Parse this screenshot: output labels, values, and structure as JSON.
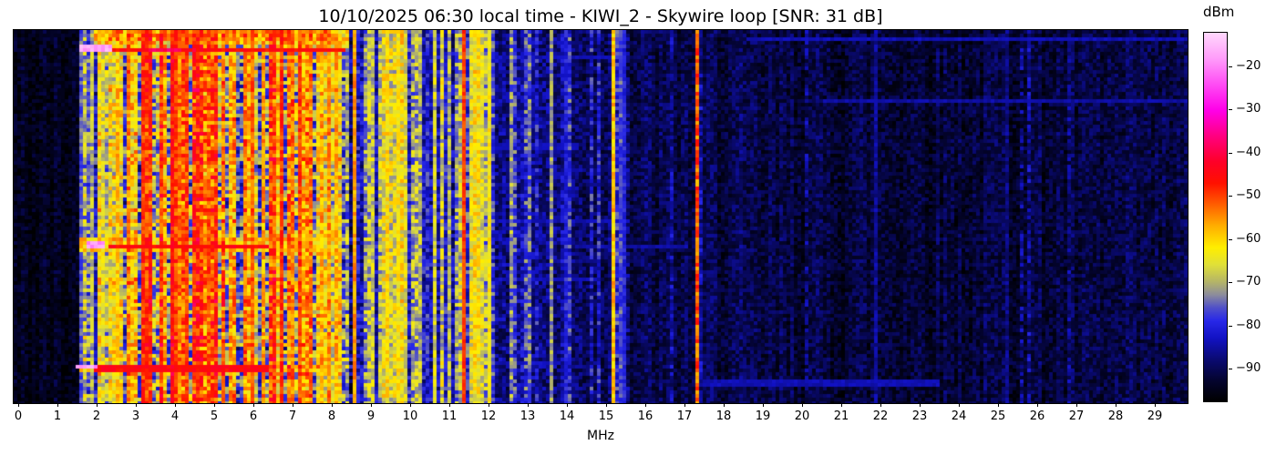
{
  "title": "10/10/2025 06:30 local time - KIWI_2 - Skywire loop [SNR: 31 dB]",
  "x_axis": {
    "label": "MHz",
    "ticks": [
      {
        "v": 0,
        "label": "0"
      },
      {
        "v": 1,
        "label": "1"
      },
      {
        "v": 2,
        "label": "2"
      },
      {
        "v": 3,
        "label": "3"
      },
      {
        "v": 4,
        "label": "4"
      },
      {
        "v": 5,
        "label": "5"
      },
      {
        "v": 6,
        "label": "6"
      },
      {
        "v": 7,
        "label": "7"
      },
      {
        "v": 8,
        "label": "8"
      },
      {
        "v": 9,
        "label": "9"
      },
      {
        "v": 10,
        "label": "10"
      },
      {
        "v": 11,
        "label": "11"
      },
      {
        "v": 12,
        "label": "12"
      },
      {
        "v": 13,
        "label": "13"
      },
      {
        "v": 14,
        "label": "14"
      },
      {
        "v": 15,
        "label": "15"
      },
      {
        "v": 16,
        "label": "16"
      },
      {
        "v": 17,
        "label": "17"
      },
      {
        "v": 18,
        "label": "18"
      },
      {
        "v": 19,
        "label": "19"
      },
      {
        "v": 20,
        "label": "20"
      },
      {
        "v": 21,
        "label": "21"
      },
      {
        "v": 22,
        "label": "22"
      },
      {
        "v": 23,
        "label": "23"
      },
      {
        "v": 24,
        "label": "24"
      },
      {
        "v": 25,
        "label": "25"
      },
      {
        "v": 26,
        "label": "26"
      },
      {
        "v": 27,
        "label": "27"
      },
      {
        "v": 28,
        "label": "28"
      },
      {
        "v": 29,
        "label": "29"
      }
    ]
  },
  "colorbar": {
    "label": "dBm",
    "ticks": [
      {
        "v": -20,
        "label": "−20"
      },
      {
        "v": -30,
        "label": "−30"
      },
      {
        "v": -40,
        "label": "−40"
      },
      {
        "v": -50,
        "label": "−50"
      },
      {
        "v": -60,
        "label": "−60"
      },
      {
        "v": -70,
        "label": "−70"
      },
      {
        "v": -80,
        "label": "−80"
      },
      {
        "v": -90,
        "label": "−90"
      }
    ]
  },
  "chart_data": {
    "type": "heatmap",
    "subtype": "radio-spectrum-waterfall",
    "title": "10/10/2025 06:30 local time - KIWI_2 - Skywire loop [SNR: 31 dB]",
    "xlabel": "MHz",
    "x_range": [
      0,
      29.84
    ],
    "x_ticks": [
      0,
      1,
      2,
      3,
      4,
      5,
      6,
      7,
      8,
      9,
      10,
      11,
      12,
      13,
      14,
      15,
      16,
      17,
      18,
      19,
      20,
      21,
      22,
      23,
      24,
      25,
      26,
      27,
      28,
      29
    ],
    "y_meaning": "time (waterfall rows, no tick labels shown)",
    "value_units": "dBm",
    "value_range": [
      -97.8,
      -12
    ],
    "colorbar_ticks": [
      -20,
      -30,
      -40,
      -50,
      -60,
      -70,
      -80,
      -90
    ],
    "grid": false,
    "legend_position": "right-colorbar",
    "seed": 42,
    "cell_size_px": [
      4,
      4
    ],
    "colormap_stops": [
      [
        -98,
        "#000000"
      ],
      [
        -93,
        "#04042e"
      ],
      [
        -88,
        "#0a0a72"
      ],
      [
        -83,
        "#1212c4"
      ],
      [
        -79,
        "#2828e8"
      ],
      [
        -76,
        "#5050c8"
      ],
      [
        -73,
        "#8c8c9c"
      ],
      [
        -70,
        "#b4b468"
      ],
      [
        -66,
        "#e0e038"
      ],
      [
        -62,
        "#ffee00"
      ],
      [
        -57,
        "#ffae00"
      ],
      [
        -52,
        "#ff5e00"
      ],
      [
        -47,
        "#ff1000"
      ],
      [
        -42,
        "#fe0028"
      ],
      [
        -36,
        "#ff0080"
      ],
      [
        -30,
        "#ff00e8"
      ],
      [
        -24,
        "#ff4cf4"
      ],
      [
        -18,
        "#ff9cfa"
      ],
      [
        -12,
        "#ffd8fc"
      ]
    ],
    "noise_bands": [
      [
        0.0,
        1.55,
        -95,
        2.5,
        0,
        0,
        0
      ],
      [
        1.55,
        2.0,
        -83,
        5,
        3,
        6,
        14
      ],
      [
        2.0,
        2.6,
        -79,
        6,
        5,
        8,
        18
      ],
      [
        2.6,
        3.1,
        -75,
        7,
        6,
        10,
        20
      ],
      [
        3.1,
        5.3,
        -71,
        8,
        26,
        10,
        24
      ],
      [
        5.3,
        6.3,
        -76,
        7,
        9,
        8,
        22
      ],
      [
        6.3,
        7.5,
        -72,
        8,
        14,
        10,
        22
      ],
      [
        7.5,
        8.35,
        -75,
        7,
        8,
        8,
        20
      ],
      [
        8.35,
        9.3,
        -83,
        5,
        4,
        6,
        16
      ],
      [
        9.3,
        10.0,
        -80,
        6,
        7,
        8,
        18
      ],
      [
        10.0,
        11.3,
        -83,
        5,
        6,
        6,
        16
      ],
      [
        11.3,
        12.1,
        -80,
        6,
        2,
        6,
        12
      ],
      [
        12.1,
        13.1,
        -86,
        4,
        5,
        4,
        10
      ],
      [
        13.1,
        14.1,
        -87,
        4,
        4,
        4,
        9
      ],
      [
        14.1,
        15.1,
        -89,
        3.5,
        2,
        3,
        8
      ],
      [
        15.1,
        15.6,
        -88,
        4,
        2,
        4,
        8
      ],
      [
        15.6,
        17.25,
        -91,
        3,
        1,
        3,
        6
      ],
      [
        17.25,
        18.5,
        -91,
        3,
        1,
        3,
        6
      ],
      [
        18.5,
        30.0,
        -92,
        3,
        4,
        2,
        5
      ]
    ],
    "carriers": [
      [
        1.62,
        -76,
        4,
        1
      ],
      [
        1.84,
        -70,
        6,
        1
      ],
      [
        2.12,
        -66,
        6,
        1
      ],
      [
        2.5,
        -60,
        6,
        1
      ],
      [
        2.82,
        -58,
        6,
        1
      ],
      [
        3.2,
        -49,
        5,
        2
      ],
      [
        3.38,
        -52,
        5,
        1
      ],
      [
        3.65,
        -55,
        6,
        1
      ],
      [
        3.9,
        -47,
        5,
        2
      ],
      [
        4.1,
        -54,
        6,
        1
      ],
      [
        4.26,
        -50,
        5,
        1
      ],
      [
        4.55,
        -53,
        6,
        1
      ],
      [
        4.85,
        -55,
        6,
        1
      ],
      [
        5.0,
        -53,
        6,
        1
      ],
      [
        5.45,
        -58,
        7,
        1
      ],
      [
        5.75,
        -60,
        7,
        1
      ],
      [
        6.0,
        -52,
        5,
        1
      ],
      [
        6.3,
        -57,
        6,
        1
      ],
      [
        6.55,
        -55,
        6,
        1
      ],
      [
        6.76,
        -50,
        5,
        1
      ],
      [
        7.0,
        -53,
        6,
        1
      ],
      [
        7.21,
        -50,
        5,
        1
      ],
      [
        7.45,
        -56,
        6,
        1
      ],
      [
        7.7,
        -57,
        6,
        1
      ],
      [
        7.95,
        -55,
        6,
        1
      ],
      [
        8.15,
        -58,
        6,
        1
      ],
      [
        8.6,
        -56,
        4,
        1
      ],
      [
        9.05,
        -68,
        6,
        1
      ],
      [
        9.42,
        -62,
        5,
        1
      ],
      [
        9.66,
        -63,
        5,
        1
      ],
      [
        9.9,
        -66,
        5,
        1
      ],
      [
        10.25,
        -70,
        6,
        1
      ],
      [
        10.6,
        -68,
        6,
        1
      ],
      [
        11.0,
        -70,
        6,
        1
      ],
      [
        11.39,
        -50,
        3,
        1
      ],
      [
        11.57,
        -65,
        6,
        1
      ],
      [
        11.66,
        -62,
        6,
        1
      ],
      [
        11.75,
        -63,
        6,
        1
      ],
      [
        11.84,
        -66,
        6,
        1
      ],
      [
        12.05,
        -63,
        4,
        1
      ],
      [
        12.6,
        -73,
        8,
        1
      ],
      [
        13.0,
        -80,
        4,
        1
      ],
      [
        13.57,
        -72,
        5,
        1
      ],
      [
        14.0,
        -80,
        4,
        1
      ],
      [
        15.19,
        -59,
        5,
        1
      ],
      [
        15.33,
        -78,
        3,
        1
      ],
      [
        15.46,
        -80,
        3,
        1
      ],
      [
        17.31,
        -52,
        7,
        1
      ],
      [
        21.9,
        -86,
        3,
        1
      ],
      [
        25.2,
        -87,
        3,
        1
      ]
    ],
    "burst_events": [
      [
        1.9,
        8.4,
        0.0,
        0.038,
        -61,
        9
      ],
      [
        2.2,
        7.9,
        0.0,
        0.02,
        -56,
        8
      ],
      [
        1.7,
        8.35,
        0.04,
        0.056,
        -46,
        3
      ],
      [
        3.3,
        4.15,
        0.04,
        0.056,
        -39,
        3
      ],
      [
        1.55,
        2.4,
        0.034,
        0.052,
        -17,
        3
      ],
      [
        1.6,
        7.6,
        0.553,
        0.592,
        -61,
        7
      ],
      [
        2.3,
        6.4,
        0.566,
        0.582,
        -45,
        3
      ],
      [
        1.7,
        2.2,
        0.556,
        0.576,
        -18,
        3
      ],
      [
        1.6,
        8.3,
        0.886,
        0.908,
        -61,
        6
      ],
      [
        1.9,
        6.35,
        0.891,
        0.903,
        -45,
        3
      ],
      [
        1.5,
        2.0,
        0.889,
        0.902,
        -18,
        3
      ]
    ],
    "faint_streaks": [
      [
        18.6,
        29.9,
        0.012,
        -84
      ],
      [
        12.1,
        15.1,
        0.06,
        -84
      ],
      [
        20.5,
        29.9,
        0.175,
        -85
      ],
      [
        12.1,
        14.3,
        0.3,
        -84
      ],
      [
        9.0,
        11.9,
        0.36,
        -80
      ],
      [
        12.3,
        15.6,
        0.5,
        -84
      ],
      [
        14.2,
        17.1,
        0.565,
        -85
      ],
      [
        12.0,
        14.8,
        0.655,
        -84
      ],
      [
        8.6,
        11.5,
        0.76,
        -79
      ],
      [
        12.1,
        13.8,
        0.875,
        -84
      ],
      [
        17.5,
        23.5,
        0.93,
        -84
      ]
    ],
    "dark_columns": [
      [
        2.37,
        6
      ],
      [
        6.12,
        4
      ],
      [
        8.45,
        4
      ]
    ]
  }
}
